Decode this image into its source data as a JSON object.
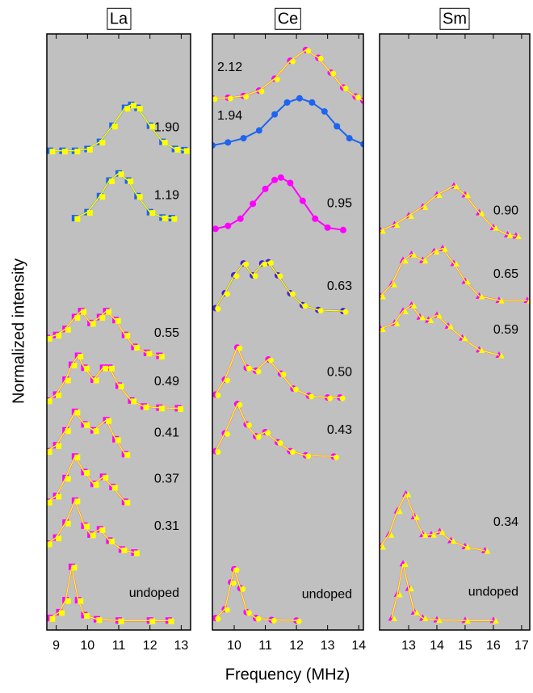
{
  "chart_data": [
    {
      "type": "line",
      "title": "La",
      "marker": "square",
      "ylabel": "Normalized intensity",
      "xlim": [
        8.7,
        13.3
      ],
      "xticks": [
        9,
        10,
        11,
        12,
        13
      ],
      "ylim": [
        0,
        100
      ],
      "series": [
        {
          "name": "1.90",
          "color": "#1e64f0",
          "fit_color": "#ffff00",
          "x": [
            8.8,
            9.2,
            9.6,
            10.0,
            10.4,
            10.8,
            11.2,
            11.4,
            11.6,
            12.0,
            12.4,
            12.8,
            13.1
          ],
          "values": [
            80.4,
            80.4,
            80.4,
            80.7,
            81.9,
            84.6,
            87.6,
            88.1,
            87.6,
            84.6,
            81.9,
            80.7,
            80.5
          ]
        },
        {
          "name": "1.19",
          "color": "#1e64f0",
          "fit_color": "#ffff00",
          "x": [
            9.6,
            10.0,
            10.4,
            10.7,
            11.0,
            11.3,
            11.6,
            12.0,
            12.4,
            12.7
          ],
          "values": [
            69.1,
            70.1,
            72.8,
            75.4,
            76.6,
            75.4,
            72.8,
            70.1,
            69.2,
            69.1
          ]
        },
        {
          "name": "0.55",
          "color": "#ff00ff",
          "fit_color": "#ffff00",
          "x": [
            8.7,
            9.0,
            9.3,
            9.6,
            9.8,
            10.1,
            10.4,
            10.6,
            10.9,
            11.2,
            11.5,
            11.9,
            12.3
          ],
          "values": [
            49,
            49.5,
            50.5,
            52.5,
            53.5,
            51.5,
            52.5,
            53.5,
            52,
            49.5,
            47.5,
            46.5,
            46
          ]
        },
        {
          "name": "0.49",
          "color": "#ff00ff",
          "fit_color": "#ffff00",
          "x": [
            8.7,
            9.0,
            9.3,
            9.5,
            9.7,
            9.9,
            10.2,
            10.5,
            10.7,
            11.0,
            11.4,
            11.8,
            12.3,
            12.9
          ],
          "values": [
            38.5,
            39.5,
            42,
            44.5,
            46,
            44,
            42,
            44,
            44,
            41,
            38.5,
            37.5,
            37.3,
            37.2
          ]
        },
        {
          "name": "0.41",
          "color": "#ff00ff",
          "fit_color": "#ffff00",
          "x": [
            8.7,
            9.0,
            9.3,
            9.6,
            9.9,
            10.2,
            10.6,
            10.9,
            11.2
          ],
          "values": [
            30,
            31,
            33.5,
            36.6,
            34.5,
            33.5,
            35.2,
            32,
            29.5
          ]
        },
        {
          "name": "0.37",
          "color": "#ff00ff",
          "fit_color": "#ffff00",
          "x": [
            8.7,
            9.0,
            9.3,
            9.6,
            9.9,
            10.2,
            10.5,
            10.8,
            11.2
          ],
          "values": [
            21.5,
            22.5,
            25.5,
            29.1,
            26.5,
            24.5,
            25.7,
            24,
            21.5
          ]
        },
        {
          "name": "0.31",
          "color": "#ff00ff",
          "fit_color": "#ffff00",
          "x": [
            8.7,
            9.0,
            9.3,
            9.6,
            9.9,
            10.1,
            10.4,
            10.7,
            11.1,
            11.5
          ],
          "values": [
            14.5,
            15.5,
            18,
            21.7,
            17.5,
            16,
            16.9,
            15,
            13.5,
            13
          ]
        },
        {
          "name": "undoped",
          "color": "#ff00ff",
          "fit_color": "#ffff00",
          "x": [
            8.8,
            9.1,
            9.3,
            9.5,
            9.7,
            9.9,
            10.3,
            11.0,
            12.0,
            12.6
          ],
          "values": [
            2,
            3,
            5,
            10.6,
            5,
            2.5,
            1.8,
            1.6,
            1.6,
            1.6
          ]
        }
      ]
    },
    {
      "type": "line",
      "title": "Ce",
      "marker": "circle",
      "xlabel": "Frequency (MHz)",
      "xlim": [
        9.3,
        14.15
      ],
      "xticks": [
        10,
        11,
        12,
        13,
        14
      ],
      "ylim": [
        0,
        100
      ],
      "series": [
        {
          "name": "2.12",
          "color": "#ff00ff",
          "fit_color": "#ffff00",
          "x": [
            9.3,
            9.8,
            10.3,
            10.8,
            11.3,
            11.8,
            12.3,
            12.7,
            13.1,
            13.5,
            13.9,
            14.15
          ],
          "values": [
            89.2,
            89.3,
            89.6,
            90.5,
            92.5,
            95.5,
            97.3,
            96,
            93.5,
            91,
            89.5,
            88.8
          ]
        },
        {
          "name": "1.94",
          "color": "#1e64f0",
          "x": [
            9.3,
            9.8,
            10.3,
            10.8,
            11.3,
            11.7,
            12.1,
            12.5,
            12.9,
            13.3,
            13.7,
            14.15
          ],
          "values": [
            81.3,
            81.8,
            82.5,
            83.8,
            86.5,
            88.5,
            89.2,
            88.5,
            87,
            84.5,
            82.5,
            81.5
          ]
        },
        {
          "name": "0.95",
          "color": "#ff00ff",
          "x": [
            9.4,
            9.8,
            10.2,
            10.6,
            11.0,
            11.3,
            11.5,
            11.8,
            12.2,
            12.6,
            13.0,
            13.5
          ],
          "values": [
            67.3,
            67.8,
            69,
            71.5,
            74,
            75.5,
            75.9,
            75,
            72,
            69,
            67.5,
            67.1
          ]
        },
        {
          "name": "0.63",
          "color": "#4422dd",
          "fit_color": "#ffff00",
          "x": [
            9.4,
            9.7,
            10.0,
            10.3,
            10.6,
            10.9,
            11.1,
            11.4,
            11.8,
            12.2,
            12.7,
            13.5
          ],
          "values": [
            54,
            56.5,
            59.5,
            61.5,
            59.5,
            61.5,
            61.7,
            59.5,
            56.5,
            54.5,
            53.7,
            53.5
          ]
        },
        {
          "name": "0.50",
          "color": "#ff00ff",
          "fit_color": "#ffff00",
          "x": [
            9.4,
            9.7,
            10.1,
            10.4,
            10.7,
            11.1,
            11.5,
            11.9,
            12.4,
            13.0,
            13.4
          ],
          "values": [
            39.5,
            42,
            47.4,
            44,
            43.5,
            45.4,
            43,
            40.5,
            39.3,
            39,
            39
          ]
        },
        {
          "name": "0.43",
          "color": "#ff00ff",
          "fit_color": "#ffff00",
          "x": [
            9.4,
            9.7,
            10.1,
            10.4,
            10.7,
            11.0,
            11.4,
            11.8,
            12.3,
            13.2
          ],
          "values": [
            30,
            33,
            37.9,
            34.5,
            32.5,
            33.2,
            31.5,
            30,
            29.3,
            29.1
          ]
        },
        {
          "name": "undoped",
          "color": "#ff00ff",
          "fit_color": "#ffff00",
          "x": [
            9.4,
            9.7,
            9.9,
            10.0,
            10.2,
            10.4,
            10.7,
            11.2,
            12.0
          ],
          "values": [
            2,
            3.5,
            8,
            10.2,
            7,
            3,
            2,
            1.7,
            1.6
          ]
        }
      ]
    },
    {
      "type": "line",
      "title": "Sm",
      "marker": "triangle",
      "xlim": [
        11.97,
        17.29
      ],
      "xticks": [
        13,
        14,
        15,
        16,
        17
      ],
      "ylim": [
        0,
        100
      ],
      "series": [
        {
          "name": "0.90",
          "color": "#ff00ff",
          "fit_color": "#ffff00",
          "x": [
            12.0,
            12.5,
            13.0,
            13.5,
            14.0,
            14.6,
            15.0,
            15.5,
            16.0,
            16.5,
            16.8
          ],
          "values": [
            67,
            68,
            69.5,
            71,
            73,
            74.5,
            73,
            70,
            67.5,
            66.3,
            66.1
          ]
        },
        {
          "name": "0.65",
          "color": "#ff00ff",
          "fit_color": "#ffff00",
          "x": [
            12.0,
            12.4,
            12.8,
            13.1,
            13.5,
            13.9,
            14.2,
            14.6,
            15.0,
            15.5,
            16.2,
            17.2
          ],
          "values": [
            56,
            58,
            62,
            63,
            62,
            63.5,
            64,
            61.5,
            58.5,
            56,
            55.3,
            55.3
          ]
        },
        {
          "name": "0.59",
          "color": "#ff00ff",
          "fit_color": "#ffff00",
          "x": [
            12.0,
            12.5,
            12.8,
            13.1,
            13.4,
            13.7,
            14.0,
            14.4,
            14.9,
            15.5,
            16.2
          ],
          "values": [
            50.5,
            51.5,
            53.5,
            54.5,
            52.5,
            52,
            52.8,
            51,
            49,
            47,
            46.1
          ]
        },
        {
          "name": "0.34",
          "color": "#ff00ff",
          "fit_color": "#ffff00",
          "x": [
            12.0,
            12.3,
            12.6,
            12.9,
            13.2,
            13.5,
            13.8,
            14.1,
            14.5,
            15.0,
            15.7
          ],
          "values": [
            14,
            16,
            20,
            22.8,
            19,
            16,
            16,
            16.5,
            15,
            14,
            13.3
          ]
        },
        {
          "name": "undoped",
          "color": "#ff00ff",
          "fit_color": "#ffff00",
          "x": [
            12.4,
            12.6,
            12.8,
            13.0,
            13.2,
            13.5,
            14.0,
            15.0,
            16.0
          ],
          "values": [
            2,
            6,
            11.1,
            7,
            3,
            2,
            1.7,
            1.6,
            1.6
          ]
        }
      ]
    }
  ]
}
